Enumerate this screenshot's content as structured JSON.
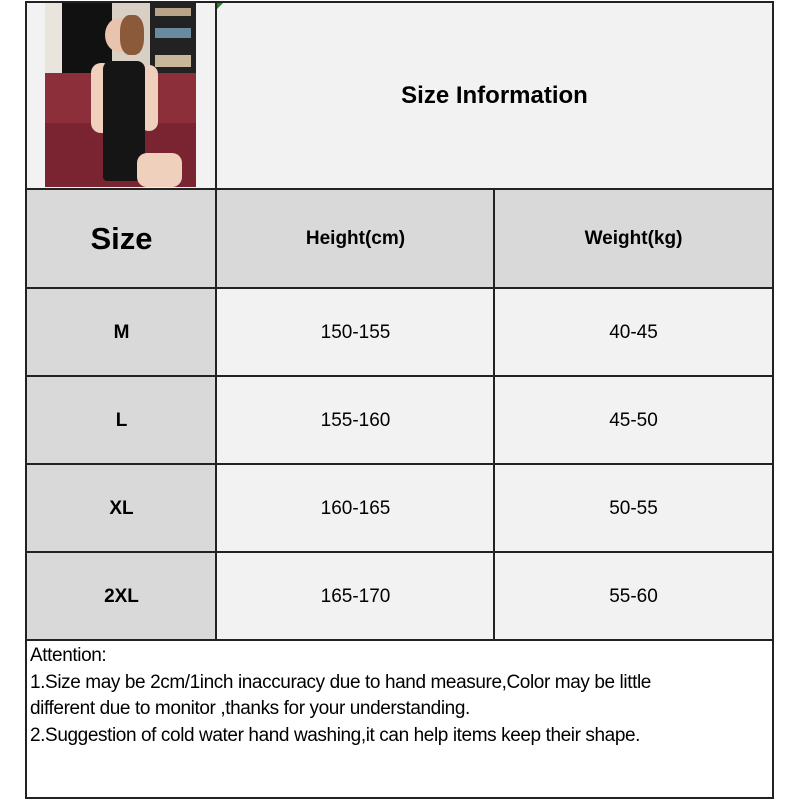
{
  "header": {
    "title": "Size Information"
  },
  "photo": {
    "alt": "model wearing black sleeveless dress on red sofa"
  },
  "table": {
    "columns": [
      "Size",
      "Height(cm)",
      "Weight(kg)"
    ],
    "rows": [
      [
        "M",
        "150-155",
        "40-45"
      ],
      [
        "L",
        "155-160",
        "45-50"
      ],
      [
        "XL",
        "160-165",
        "50-55"
      ],
      [
        "2XL",
        "165-170",
        "55-60"
      ]
    ]
  },
  "notes": {
    "heading": "Attention:",
    "line1": "1.Size may be 2cm/1inch inaccuracy due to hand measure,Color may be little",
    "line1b": "different due to monitor ,thanks for your understanding.",
    "line2": "2.Suggestion of cold water hand washing,it can help items keep their shape."
  },
  "colors": {
    "header_fill": "#d9d9d9",
    "cell_fill": "#f2f2f2",
    "border": "#222222"
  }
}
